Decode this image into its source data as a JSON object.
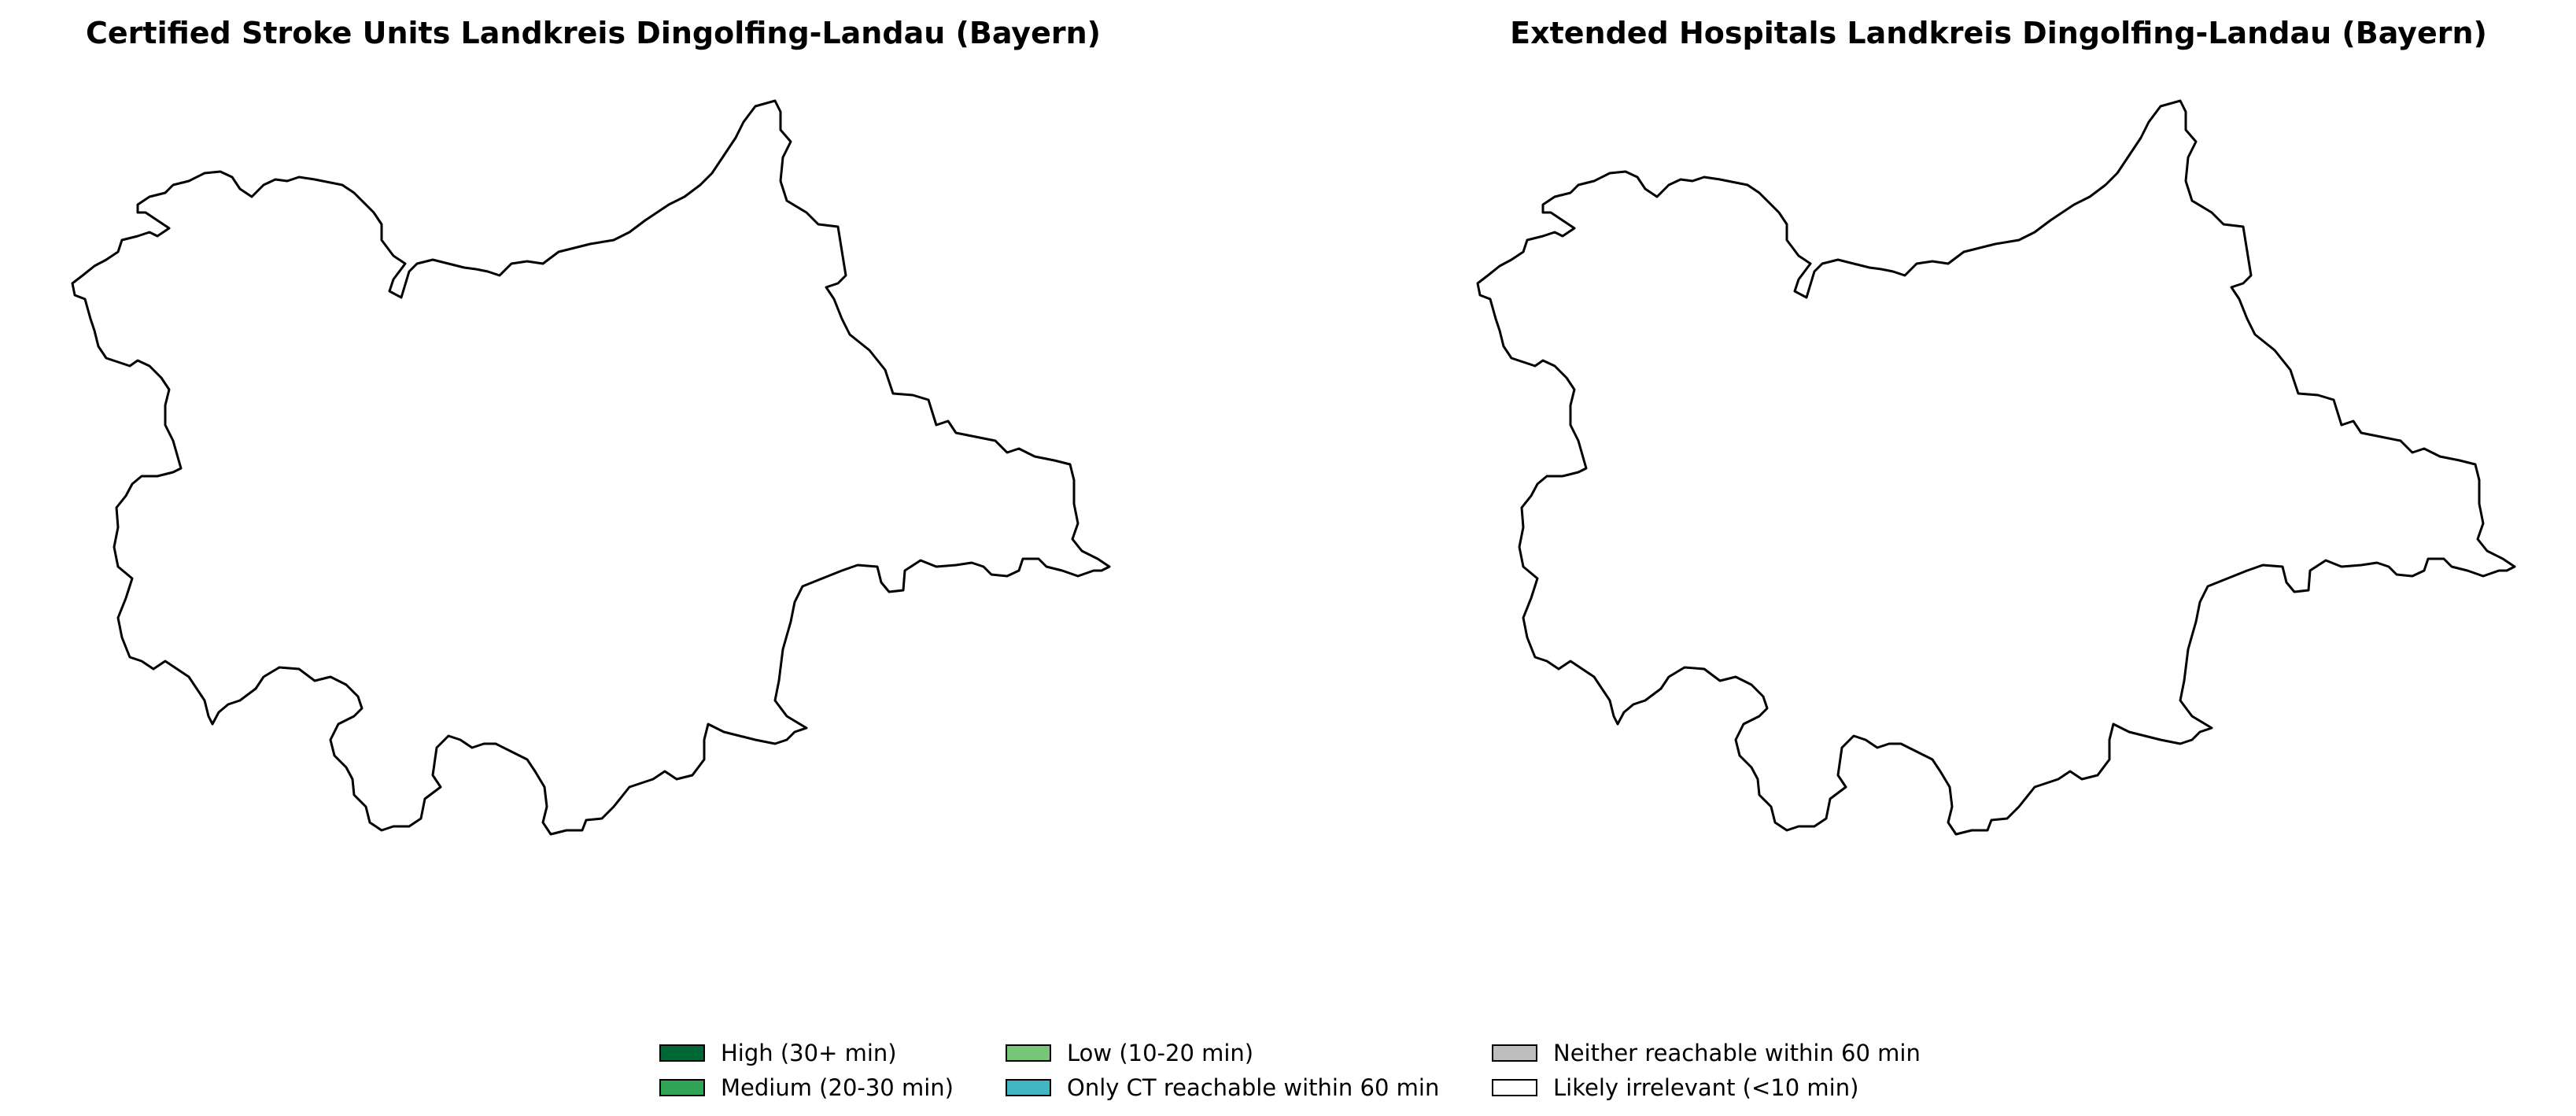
{
  "maps": [
    {
      "title": "Certified Stroke Units Landkreis Dingolfing-Landau (Bayern)",
      "region": "Landkreis Dingolfing-Landau",
      "fill": "#ffffff",
      "outline_color": "#000000"
    },
    {
      "title": "Extended Hospitals Landkreis Dingolfing-Landau (Bayern)",
      "region": "Landkreis Dingolfing-Landau",
      "fill": "#ffffff",
      "outline_color": "#000000"
    }
  ],
  "legend": {
    "items": [
      {
        "label": "High (30+ min)",
        "color": "#006837"
      },
      {
        "label": "Medium (20-30 min)",
        "color": "#31a354"
      },
      {
        "label": "Low (10-20 min)",
        "color": "#78c679"
      },
      {
        "label": "Only CT reachable within 60 min",
        "color": "#41b6c4"
      },
      {
        "label": "Neither reachable within 60 min",
        "color": "#bdbdbd"
      },
      {
        "label": "Likely irrelevant (<10 min)",
        "color": "#ffffff"
      }
    ]
  }
}
